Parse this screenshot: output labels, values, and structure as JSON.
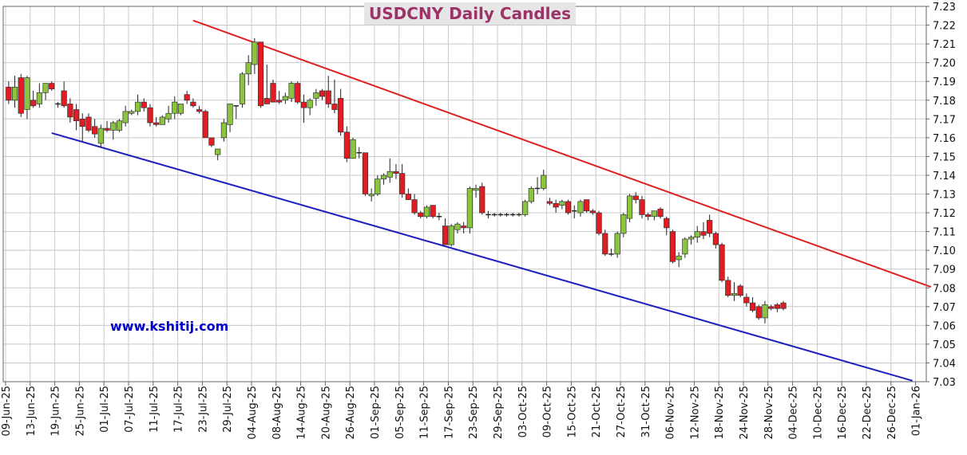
{
  "chart_data": {
    "type": "candlestick",
    "title": "USDCNY Daily Candles",
    "watermark": "www.kshitij.com",
    "ylim": [
      7.03,
      7.23
    ],
    "ytick_step": 0.01,
    "x_tick_labels": [
      "09-Jun-25",
      "13-Jun-25",
      "19-Jun-25",
      "25-Jun-25",
      "01-Jul-25",
      "07-Jul-25",
      "11-Jul-25",
      "17-Jul-25",
      "23-Jul-25",
      "29-Jul-25",
      "04-Aug-25",
      "08-Aug-25",
      "14-Aug-25",
      "20-Aug-25",
      "26-Aug-25",
      "01-Sep-25",
      "05-Sep-25",
      "11-Sep-25",
      "17-Sep-25",
      "23-Sep-25",
      "29-Sep-25",
      "03-Oct-25",
      "09-Oct-25",
      "15-Oct-25",
      "21-Oct-25",
      "27-Oct-25",
      "31-Oct-25",
      "06-Nov-25",
      "12-Nov-25",
      "18-Nov-25",
      "24-Nov-25",
      "28-Nov-25",
      "04-Dec-25",
      "10-Dec-25",
      "16-Dec-25",
      "22-Dec-25",
      "26-Dec-25",
      "01-Jan-26"
    ],
    "bars_per_tick": 4,
    "up_color": "#8bc53f",
    "down_color": "#e31b23",
    "grid": true,
    "candles": [
      {
        "o": 7.187,
        "h": 7.19,
        "l": 7.178,
        "c": 7.18
      },
      {
        "o": 7.18,
        "h": 7.193,
        "l": 7.176,
        "c": 7.187
      },
      {
        "o": 7.192,
        "h": 7.194,
        "l": 7.171,
        "c": 7.173
      },
      {
        "o": 7.175,
        "h": 7.193,
        "l": 7.17,
        "c": 7.192
      },
      {
        "o": 7.18,
        "h": 7.185,
        "l": 7.176,
        "c": 7.177
      },
      {
        "o": 7.178,
        "h": 7.189,
        "l": 7.176,
        "c": 7.184
      },
      {
        "o": 7.184,
        "h": 7.189,
        "l": 7.18,
        "c": 7.189
      },
      {
        "o": 7.189,
        "h": 7.19,
        "l": 7.185,
        "c": 7.186
      },
      {
        "o": 7.178,
        "h": 7.179,
        "l": 7.176,
        "c": 7.178
      },
      {
        "o": 7.185,
        "h": 7.19,
        "l": 7.176,
        "c": 7.177
      },
      {
        "o": 7.178,
        "h": 7.181,
        "l": 7.168,
        "c": 7.171
      },
      {
        "o": 7.175,
        "h": 7.178,
        "l": 7.164,
        "c": 7.169
      },
      {
        "o": 7.17,
        "h": 7.173,
        "l": 7.158,
        "c": 7.166
      },
      {
        "o": 7.171,
        "h": 7.173,
        "l": 7.163,
        "c": 7.164
      },
      {
        "o": 7.166,
        "h": 7.17,
        "l": 7.16,
        "c": 7.162
      },
      {
        "o": 7.157,
        "h": 7.167,
        "l": 7.155,
        "c": 7.165
      },
      {
        "o": 7.165,
        "h": 7.169,
        "l": 7.163,
        "c": 7.164
      },
      {
        "o": 7.164,
        "h": 7.169,
        "l": 7.159,
        "c": 7.168
      },
      {
        "o": 7.164,
        "h": 7.17,
        "l": 7.163,
        "c": 7.169
      },
      {
        "o": 7.168,
        "h": 7.177,
        "l": 7.166,
        "c": 7.174
      },
      {
        "o": 7.173,
        "h": 7.175,
        "l": 7.172,
        "c": 7.174
      },
      {
        "o": 7.174,
        "h": 7.183,
        "l": 7.172,
        "c": 7.179
      },
      {
        "o": 7.179,
        "h": 7.181,
        "l": 7.174,
        "c": 7.176
      },
      {
        "o": 7.176,
        "h": 7.178,
        "l": 7.166,
        "c": 7.168
      },
      {
        "o": 7.168,
        "h": 7.171,
        "l": 7.166,
        "c": 7.167
      },
      {
        "o": 7.167,
        "h": 7.172,
        "l": 7.167,
        "c": 7.171
      },
      {
        "o": 7.17,
        "h": 7.177,
        "l": 7.168,
        "c": 7.173
      },
      {
        "o": 7.173,
        "h": 7.182,
        "l": 7.17,
        "c": 7.179
      },
      {
        "o": 7.173,
        "h": 7.178,
        "l": 7.172,
        "c": 7.178
      },
      {
        "o": 7.183,
        "h": 7.185,
        "l": 7.178,
        "c": 7.18
      },
      {
        "o": 7.179,
        "h": 7.181,
        "l": 7.176,
        "c": 7.177
      },
      {
        "o": 7.175,
        "h": 7.177,
        "l": 7.173,
        "c": 7.174
      },
      {
        "o": 7.174,
        "h": 7.175,
        "l": 7.16,
        "c": 7.16
      },
      {
        "o": 7.16,
        "h": 7.16,
        "l": 7.155,
        "c": 7.156
      },
      {
        "o": 7.151,
        "h": 7.154,
        "l": 7.148,
        "c": 7.154
      },
      {
        "o": 7.16,
        "h": 7.17,
        "l": 7.158,
        "c": 7.168
      },
      {
        "o": 7.167,
        "h": 7.178,
        "l": 7.163,
        "c": 7.178
      },
      {
        "o": 7.177,
        "h": 7.177,
        "l": 7.17,
        "c": 7.177
      },
      {
        "o": 7.178,
        "h": 7.195,
        "l": 7.176,
        "c": 7.194
      },
      {
        "o": 7.194,
        "h": 7.204,
        "l": 7.188,
        "c": 7.2
      },
      {
        "o": 7.199,
        "h": 7.213,
        "l": 7.194,
        "c": 7.211
      },
      {
        "o": 7.211,
        "h": 7.211,
        "l": 7.176,
        "c": 7.177
      },
      {
        "o": 7.181,
        "h": 7.199,
        "l": 7.178,
        "c": 7.178
      },
      {
        "o": 7.189,
        "h": 7.191,
        "l": 7.179,
        "c": 7.179
      },
      {
        "o": 7.18,
        "h": 7.185,
        "l": 7.178,
        "c": 7.179
      },
      {
        "o": 7.18,
        "h": 7.184,
        "l": 7.178,
        "c": 7.182
      },
      {
        "o": 7.181,
        "h": 7.19,
        "l": 7.179,
        "c": 7.189
      },
      {
        "o": 7.189,
        "h": 7.19,
        "l": 7.178,
        "c": 7.179
      },
      {
        "o": 7.179,
        "h": 7.183,
        "l": 7.168,
        "c": 7.176
      },
      {
        "o": 7.176,
        "h": 7.181,
        "l": 7.172,
        "c": 7.18
      },
      {
        "o": 7.181,
        "h": 7.186,
        "l": 7.177,
        "c": 7.184
      },
      {
        "o": 7.185,
        "h": 7.186,
        "l": 7.18,
        "c": 7.182
      },
      {
        "o": 7.185,
        "h": 7.193,
        "l": 7.176,
        "c": 7.178
      },
      {
        "o": 7.178,
        "h": 7.191,
        "l": 7.173,
        "c": 7.175
      },
      {
        "o": 7.181,
        "h": 7.186,
        "l": 7.161,
        "c": 7.163
      },
      {
        "o": 7.163,
        "h": 7.166,
        "l": 7.147,
        "c": 7.149
      },
      {
        "o": 7.149,
        "h": 7.16,
        "l": 7.149,
        "c": 7.159
      },
      {
        "o": 7.152,
        "h": 7.155,
        "l": 7.149,
        "c": 7.152
      },
      {
        "o": 7.152,
        "h": 7.152,
        "l": 7.129,
        "c": 7.13
      },
      {
        "o": 7.129,
        "h": 7.133,
        "l": 7.126,
        "c": 7.13
      },
      {
        "o": 7.13,
        "h": 7.14,
        "l": 7.129,
        "c": 7.138
      },
      {
        "o": 7.138,
        "h": 7.141,
        "l": 7.135,
        "c": 7.14
      },
      {
        "o": 7.139,
        "h": 7.149,
        "l": 7.136,
        "c": 7.142
      },
      {
        "o": 7.142,
        "h": 7.146,
        "l": 7.138,
        "c": 7.141
      },
      {
        "o": 7.141,
        "h": 7.146,
        "l": 7.128,
        "c": 7.13
      },
      {
        "o": 7.13,
        "h": 7.133,
        "l": 7.127,
        "c": 7.127
      },
      {
        "o": 7.127,
        "h": 7.13,
        "l": 7.119,
        "c": 7.12
      },
      {
        "o": 7.12,
        "h": 7.121,
        "l": 7.117,
        "c": 7.118
      },
      {
        "o": 7.118,
        "h": 7.124,
        "l": 7.117,
        "c": 7.123
      },
      {
        "o": 7.124,
        "h": 7.124,
        "l": 7.117,
        "c": 7.118
      },
      {
        "o": 7.118,
        "h": 7.12,
        "l": 7.116,
        "c": 7.118
      },
      {
        "o": 7.113,
        "h": 7.117,
        "l": 7.103,
        "c": 7.103
      },
      {
        "o": 7.103,
        "h": 7.114,
        "l": 7.102,
        "c": 7.113
      },
      {
        "o": 7.111,
        "h": 7.115,
        "l": 7.109,
        "c": 7.114
      },
      {
        "o": 7.113,
        "h": 7.115,
        "l": 7.109,
        "c": 7.112
      },
      {
        "o": 7.112,
        "h": 7.134,
        "l": 7.109,
        "c": 7.133
      },
      {
        "o": 7.132,
        "h": 7.135,
        "l": 7.128,
        "c": 7.133
      },
      {
        "o": 7.134,
        "h": 7.136,
        "l": 7.119,
        "c": 7.12
      },
      {
        "o": 7.119,
        "h": 7.121,
        "l": 7.117,
        "c": 7.119
      },
      {
        "o": 7.119,
        "h": 7.12,
        "l": 7.118,
        "c": 7.119
      },
      {
        "o": 7.119,
        "h": 7.12,
        "l": 7.118,
        "c": 7.119
      },
      {
        "o": 7.119,
        "h": 7.12,
        "l": 7.118,
        "c": 7.119
      },
      {
        "o": 7.119,
        "h": 7.12,
        "l": 7.118,
        "c": 7.119
      },
      {
        "o": 7.119,
        "h": 7.12,
        "l": 7.118,
        "c": 7.119
      },
      {
        "o": 7.119,
        "h": 7.127,
        "l": 7.118,
        "c": 7.126
      },
      {
        "o": 7.126,
        "h": 7.134,
        "l": 7.125,
        "c": 7.133
      },
      {
        "o": 7.133,
        "h": 7.139,
        "l": 7.13,
        "c": 7.133
      },
      {
        "o": 7.133,
        "h": 7.143,
        "l": 7.132,
        "c": 7.14
      },
      {
        "o": 7.126,
        "h": 7.128,
        "l": 7.124,
        "c": 7.125
      },
      {
        "o": 7.125,
        "h": 7.127,
        "l": 7.12,
        "c": 7.123
      },
      {
        "o": 7.124,
        "h": 7.127,
        "l": 7.122,
        "c": 7.126
      },
      {
        "o": 7.126,
        "h": 7.127,
        "l": 7.119,
        "c": 7.12
      },
      {
        "o": 7.121,
        "h": 7.124,
        "l": 7.117,
        "c": 7.121
      },
      {
        "o": 7.12,
        "h": 7.127,
        "l": 7.118,
        "c": 7.126
      },
      {
        "o": 7.127,
        "h": 7.127,
        "l": 7.12,
        "c": 7.121
      },
      {
        "o": 7.121,
        "h": 7.122,
        "l": 7.119,
        "c": 7.12
      },
      {
        "o": 7.12,
        "h": 7.121,
        "l": 7.108,
        "c": 7.109
      },
      {
        "o": 7.109,
        "h": 7.111,
        "l": 7.097,
        "c": 7.098
      },
      {
        "o": 7.098,
        "h": 7.101,
        "l": 7.097,
        "c": 7.098
      },
      {
        "o": 7.098,
        "h": 7.11,
        "l": 7.096,
        "c": 7.109
      },
      {
        "o": 7.109,
        "h": 7.12,
        "l": 7.107,
        "c": 7.119
      },
      {
        "o": 7.117,
        "h": 7.13,
        "l": 7.115,
        "c": 7.129
      },
      {
        "o": 7.129,
        "h": 7.131,
        "l": 7.125,
        "c": 7.127
      },
      {
        "o": 7.127,
        "h": 7.129,
        "l": 7.117,
        "c": 7.119
      },
      {
        "o": 7.119,
        "h": 7.12,
        "l": 7.116,
        "c": 7.118
      },
      {
        "o": 7.118,
        "h": 7.121,
        "l": 7.116,
        "c": 7.121
      },
      {
        "o": 7.122,
        "h": 7.123,
        "l": 7.117,
        "c": 7.118
      },
      {
        "o": 7.117,
        "h": 7.118,
        "l": 7.108,
        "c": 7.112
      },
      {
        "o": 7.11,
        "h": 7.111,
        "l": 7.093,
        "c": 7.094
      },
      {
        "o": 7.095,
        "h": 7.099,
        "l": 7.091,
        "c": 7.097
      },
      {
        "o": 7.098,
        "h": 7.107,
        "l": 7.096,
        "c": 7.106
      },
      {
        "o": 7.106,
        "h": 7.108,
        "l": 7.103,
        "c": 7.107
      },
      {
        "o": 7.107,
        "h": 7.113,
        "l": 7.104,
        "c": 7.11
      },
      {
        "o": 7.11,
        "h": 7.115,
        "l": 7.106,
        "c": 7.108
      },
      {
        "o": 7.116,
        "h": 7.119,
        "l": 7.107,
        "c": 7.109
      },
      {
        "o": 7.109,
        "h": 7.11,
        "l": 7.101,
        "c": 7.103
      },
      {
        "o": 7.103,
        "h": 7.104,
        "l": 7.083,
        "c": 7.084
      },
      {
        "o": 7.084,
        "h": 7.086,
        "l": 7.075,
        "c": 7.076
      },
      {
        "o": 7.076,
        "h": 7.083,
        "l": 7.073,
        "c": 7.077
      },
      {
        "o": 7.081,
        "h": 7.082,
        "l": 7.075,
        "c": 7.076
      },
      {
        "o": 7.075,
        "h": 7.077,
        "l": 7.07,
        "c": 7.072
      },
      {
        "o": 7.072,
        "h": 7.075,
        "l": 7.067,
        "c": 7.068
      },
      {
        "o": 7.07,
        "h": 7.071,
        "l": 7.063,
        "c": 7.064
      },
      {
        "o": 7.064,
        "h": 7.073,
        "l": 7.061,
        "c": 7.071
      },
      {
        "o": 7.07,
        "h": 7.071,
        "l": 7.068,
        "c": 7.069
      },
      {
        "o": 7.071,
        "h": 7.072,
        "l": 7.067,
        "c": 7.069
      },
      {
        "o": 7.072,
        "h": 7.073,
        "l": 7.068,
        "c": 7.069
      }
    ],
    "trendlines": [
      {
        "color": "#e02020",
        "from": {
          "x": 30.5,
          "y": 7.2225
        },
        "to": {
          "x": 150.5,
          "y": 7.0805
        }
      },
      {
        "color": "#1f1fbf",
        "from": {
          "x": 7.5,
          "y": 7.1625
        },
        "to": {
          "x": 147.5,
          "y": 7.0305
        }
      }
    ]
  }
}
